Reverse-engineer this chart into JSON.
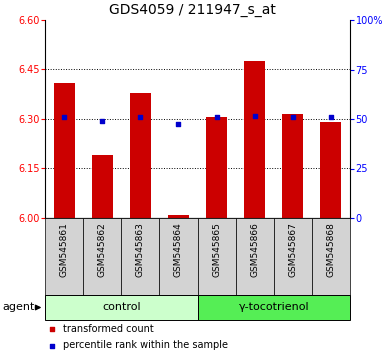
{
  "title": "GDS4059 / 211947_s_at",
  "samples": [
    "GSM545861",
    "GSM545862",
    "GSM545863",
    "GSM545864",
    "GSM545865",
    "GSM545866",
    "GSM545867",
    "GSM545868"
  ],
  "red_values": [
    6.41,
    6.19,
    6.38,
    6.01,
    6.305,
    6.475,
    6.315,
    6.29
  ],
  "blue_values": [
    6.305,
    6.295,
    6.305,
    6.285,
    6.305,
    6.31,
    6.305,
    6.305
  ],
  "ylim_left": [
    6.0,
    6.6
  ],
  "ylim_right": [
    0,
    100
  ],
  "yticks_left": [
    6.0,
    6.15,
    6.3,
    6.45,
    6.6
  ],
  "yticks_right": [
    0,
    25,
    50,
    75,
    100
  ],
  "ytick_labels_right": [
    "0",
    "25",
    "50",
    "75",
    "100%"
  ],
  "bar_color": "#cc0000",
  "dot_color": "#0000cc",
  "bar_bottom": 6.0,
  "groups": [
    {
      "label": "control",
      "start": 0,
      "end": 3,
      "color": "#ccffcc"
    },
    {
      "label": "γ-tocotrienol",
      "start": 4,
      "end": 7,
      "color": "#55ee55"
    }
  ],
  "agent_label": "agent",
  "legend_items": [
    {
      "color": "#cc0000",
      "label": "transformed count"
    },
    {
      "color": "#0000cc",
      "label": "percentile rank within the sample"
    }
  ],
  "label_area_color": "#d3d3d3",
  "title_fontsize": 10,
  "tick_fontsize": 7,
  "sample_fontsize": 6.5,
  "group_fontsize": 8,
  "legend_fontsize": 7,
  "agent_fontsize": 8
}
